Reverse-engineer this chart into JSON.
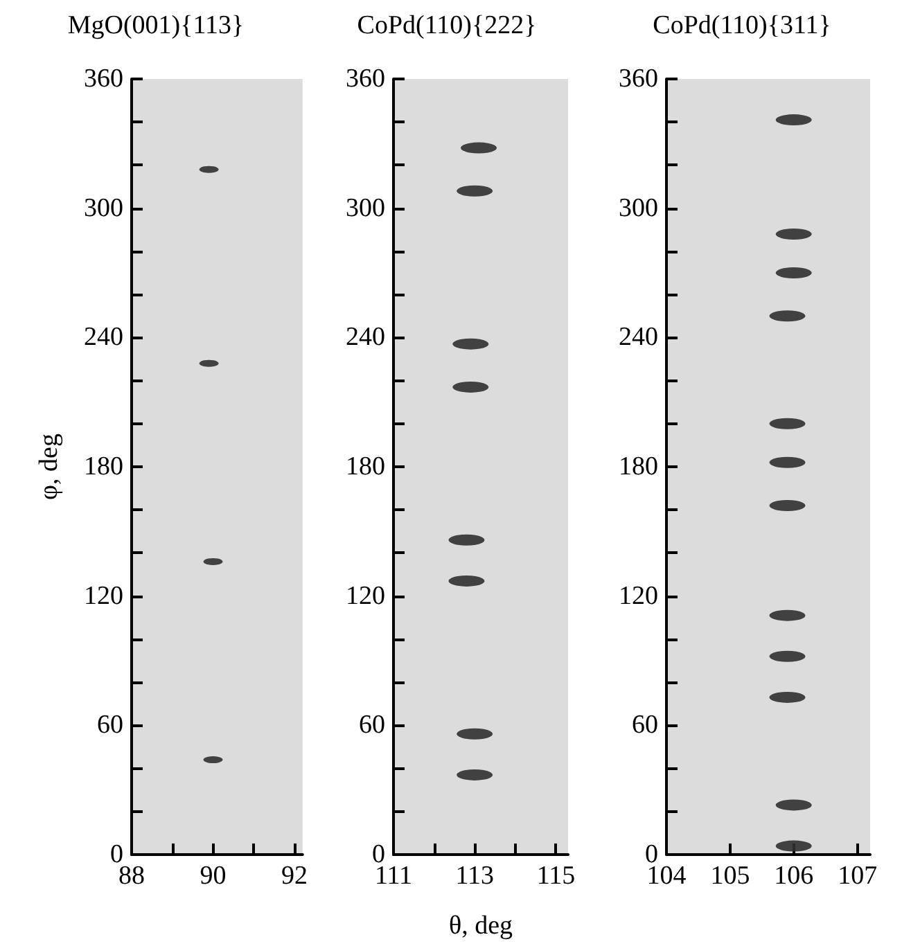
{
  "chart_data": [
    {
      "type": "scatter",
      "title": "MgO(001){113}",
      "ylabel": "φ, deg",
      "marker": "circle",
      "grid": false,
      "series": [
        {
          "color": "#303030",
          "x": [
            89.9,
            89.9,
            90.0,
            90.0
          ],
          "values": [
            318,
            228,
            136,
            44
          ]
        }
      ],
      "xlim": [
        88,
        92.2
      ],
      "xticks": [
        88,
        {
          "value": 89,
          "label": null
        },
        90,
        {
          "value": 91,
          "label": null
        },
        92
      ],
      "ylim": [
        0,
        360
      ],
      "yticks": [
        0,
        {
          "value": 20,
          "label": null
        },
        {
          "value": 40,
          "label": null
        },
        60,
        {
          "value": 80,
          "label": null
        },
        {
          "value": 100,
          "label": null
        },
        120,
        {
          "value": 140,
          "label": null
        },
        {
          "value": 160,
          "label": null
        },
        180,
        {
          "value": 200,
          "label": null
        },
        {
          "value": 220,
          "label": null
        },
        240,
        {
          "value": 260,
          "label": null
        },
        {
          "value": 280,
          "label": null
        },
        300,
        {
          "value": 320,
          "label": null
        },
        {
          "value": 340,
          "label": null
        },
        360
      ]
    },
    {
      "type": "scatter",
      "title": "CoPd(110){222}",
      "xlabel": "θ, deg",
      "marker": "circle",
      "grid": false,
      "series": [
        {
          "color": "#303030",
          "x": [
            113.1,
            113.0,
            112.9,
            112.9,
            112.8,
            112.8,
            113.0,
            113.0
          ],
          "values": [
            328,
            308,
            237,
            217,
            146,
            127,
            56,
            37
          ]
        }
      ],
      "xlim": [
        111,
        115.3
      ],
      "xticks": [
        111,
        {
          "value": 112,
          "label": null
        },
        113,
        {
          "value": 114,
          "label": null
        },
        115
      ],
      "ylim": [
        0,
        360
      ],
      "yticks": [
        0,
        {
          "value": 20,
          "label": null
        },
        {
          "value": 40,
          "label": null
        },
        60,
        {
          "value": 80,
          "label": null
        },
        {
          "value": 100,
          "label": null
        },
        120,
        {
          "value": 140,
          "label": null
        },
        {
          "value": 160,
          "label": null
        },
        180,
        {
          "value": 200,
          "label": null
        },
        {
          "value": 220,
          "label": null
        },
        240,
        {
          "value": 260,
          "label": null
        },
        {
          "value": 280,
          "label": null
        },
        300,
        {
          "value": 320,
          "label": null
        },
        {
          "value": 340,
          "label": null
        },
        360
      ]
    },
    {
      "type": "scatter",
      "title": "CoPd(110){311}",
      "marker": "circle",
      "grid": false,
      "series": [
        {
          "color": "#303030",
          "x": [
            106.0,
            106.0,
            106.0,
            105.9,
            105.9,
            105.9,
            105.9,
            105.9,
            105.9,
            105.9,
            106.0,
            106.0
          ],
          "values": [
            341,
            288,
            270,
            250,
            200,
            182,
            162,
            111,
            92,
            73,
            23,
            4
          ]
        }
      ],
      "xlim": [
        104,
        107.2
      ],
      "xticks": [
        104,
        105,
        106,
        107
      ],
      "ylim": [
        0,
        360
      ],
      "yticks": [
        0,
        {
          "value": 20,
          "label": null
        },
        {
          "value": 40,
          "label": null
        },
        60,
        {
          "value": 80,
          "label": null
        },
        {
          "value": 100,
          "label": null
        },
        120,
        {
          "value": 140,
          "label": null
        },
        {
          "value": 160,
          "label": null
        },
        180,
        {
          "value": 200,
          "label": null
        },
        {
          "value": 220,
          "label": null
        },
        240,
        {
          "value": 260,
          "label": null
        },
        {
          "value": 280,
          "label": null
        },
        300,
        {
          "value": 320,
          "label": null
        },
        {
          "value": 340,
          "label": null
        },
        360
      ]
    }
  ]
}
